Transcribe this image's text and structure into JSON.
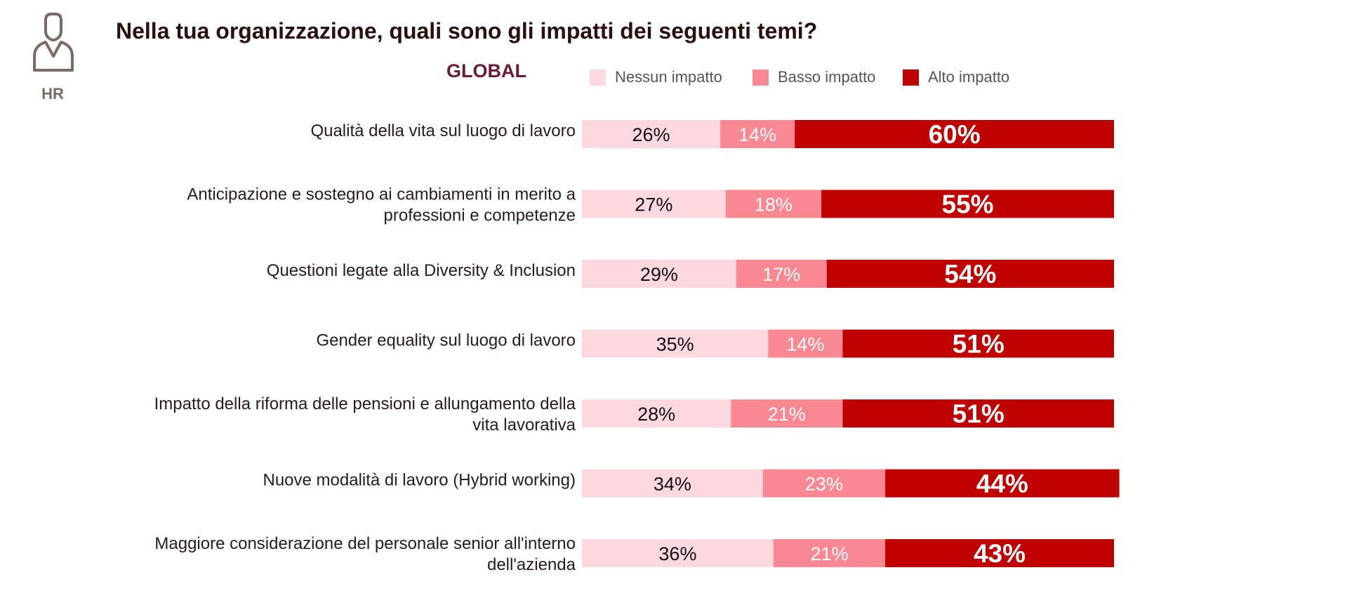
{
  "badge": {
    "label": "HR",
    "icon": "person-icon"
  },
  "colors": {
    "none": "#fdd8df",
    "low": "#fa8892",
    "high": "#c00000"
  },
  "chart_data": {
    "type": "bar",
    "orientation": "horizontal",
    "stacked": true,
    "title": "Nella tua organizzazione, quali sono gli impatti dei seguenti temi?",
    "subtitle": "GLOBAL",
    "legend_position": "top",
    "categories": [
      [
        "Qualità della vita sul luogo di lavoro"
      ],
      [
        "Anticipazione e sostegno ai cambiamenti in merito a",
        "professioni e competenze"
      ],
      [
        "Questioni legate alla Diversity & Inclusion"
      ],
      [
        "Gender equality sul luogo di lavoro"
      ],
      [
        "Impatto della riforma delle pensioni e allungamento della",
        "vita lavorativa"
      ],
      [
        "Nuove modalità di lavoro (Hybrid working)"
      ],
      [
        "Maggiore considerazione del personale senior all'interno",
        "dell'azienda"
      ]
    ],
    "series": [
      {
        "name": "Nessun impatto",
        "values": [
          26,
          27,
          29,
          35,
          28,
          34,
          36
        ]
      },
      {
        "name": "Basso impatto",
        "values": [
          14,
          18,
          17,
          14,
          21,
          23,
          21
        ]
      },
      {
        "name": "Alto impatto",
        "values": [
          60,
          55,
          54,
          51,
          51,
          44,
          43
        ]
      }
    ],
    "unit": "%",
    "xlim": [
      0,
      100
    ]
  }
}
